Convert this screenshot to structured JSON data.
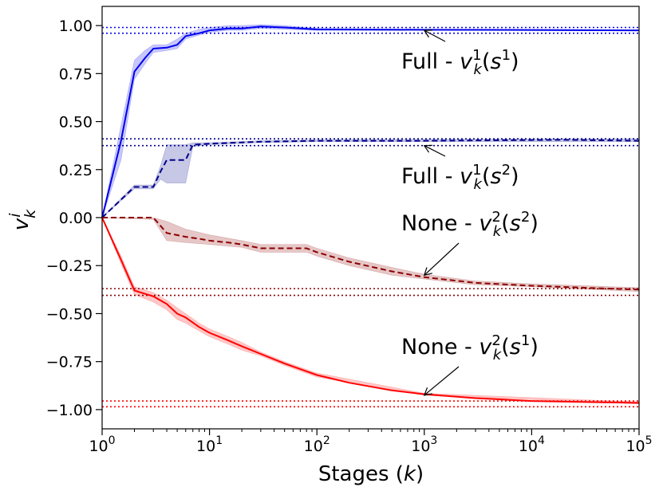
{
  "chart_data": {
    "type": "line",
    "xscale": "log",
    "xlim": [
      1,
      100000
    ],
    "ylim": [
      -1.1,
      1.1
    ],
    "xlabel": "Stages (k)",
    "ylabel": "v_k^i",
    "xticks": [
      {
        "value": 1,
        "base": "10",
        "exp": "0"
      },
      {
        "value": 10,
        "base": "10",
        "exp": "1"
      },
      {
        "value": 100,
        "base": "10",
        "exp": "2"
      },
      {
        "value": 1000,
        "base": "10",
        "exp": "3"
      },
      {
        "value": 10000,
        "base": "10",
        "exp": "4"
      },
      {
        "value": 100000,
        "base": "10",
        "exp": "5"
      }
    ],
    "yticks": [
      {
        "value": 1.0,
        "label": "1.00"
      },
      {
        "value": 0.75,
        "label": "0.75"
      },
      {
        "value": 0.5,
        "label": "0.50"
      },
      {
        "value": 0.25,
        "label": "0.25"
      },
      {
        "value": 0.0,
        "label": "0.00"
      },
      {
        "value": -0.25,
        "label": "−0.25"
      },
      {
        "value": -0.5,
        "label": "−0.50"
      },
      {
        "value": -0.75,
        "label": "−0.75"
      },
      {
        "value": -1.0,
        "label": "−1.00"
      }
    ],
    "reference_lines": [
      {
        "y": 0.99,
        "color": "#0000ee"
      },
      {
        "y": 0.96,
        "color": "#0000ee"
      },
      {
        "y": 0.41,
        "color": "#00008b"
      },
      {
        "y": 0.375,
        "color": "#00008b"
      },
      {
        "y": -0.37,
        "color": "#8b0000"
      },
      {
        "y": -0.405,
        "color": "#8b0000"
      },
      {
        "y": -0.955,
        "color": "#ff0000"
      },
      {
        "y": -0.985,
        "color": "#ff0000"
      }
    ],
    "series": [
      {
        "name": "Full - v_k^1(s^1)",
        "color": "#0000ee",
        "dash": "solid",
        "points": [
          [
            1,
            0.0
          ],
          [
            1.5,
            0.4
          ],
          [
            2,
            0.76
          ],
          [
            2.5,
            0.83
          ],
          [
            3,
            0.88
          ],
          [
            4,
            0.885
          ],
          [
            5,
            0.9
          ],
          [
            6,
            0.945
          ],
          [
            8,
            0.96
          ],
          [
            10,
            0.975
          ],
          [
            15,
            0.985
          ],
          [
            20,
            0.985
          ],
          [
            30,
            0.995
          ],
          [
            50,
            0.99
          ],
          [
            100,
            0.98
          ],
          [
            1000,
            0.978
          ],
          [
            10000,
            0.977
          ],
          [
            100000,
            0.975
          ]
        ],
        "band": [
          [
            1,
            0.0,
            0.0
          ],
          [
            1.5,
            0.3,
            0.48
          ],
          [
            2,
            0.72,
            0.82
          ],
          [
            2.5,
            0.8,
            0.87
          ],
          [
            3,
            0.86,
            0.9
          ],
          [
            4,
            0.87,
            0.9
          ],
          [
            5,
            0.88,
            0.93
          ],
          [
            6,
            0.93,
            0.96
          ],
          [
            8,
            0.95,
            0.98
          ],
          [
            10,
            0.965,
            0.99
          ],
          [
            15,
            0.975,
            1.0
          ],
          [
            20,
            0.975,
            1.0
          ],
          [
            30,
            0.985,
            1.005
          ],
          [
            50,
            0.98,
            1.0
          ],
          [
            100,
            0.975,
            0.985
          ],
          [
            1000,
            0.975,
            0.98
          ],
          [
            100000,
            0.972,
            0.978
          ]
        ]
      },
      {
        "name": "Full - v_k^1(s^2)",
        "color": "#00008b",
        "dash": "dashed",
        "points": [
          [
            1,
            0.0
          ],
          [
            2,
            0.16
          ],
          [
            3,
            0.16
          ],
          [
            3.5,
            0.24
          ],
          [
            4,
            0.3
          ],
          [
            6,
            0.3
          ],
          [
            7,
            0.38
          ],
          [
            10,
            0.385
          ],
          [
            30,
            0.395
          ],
          [
            100,
            0.4
          ],
          [
            1000,
            0.4
          ],
          [
            20000,
            0.405
          ],
          [
            100000,
            0.4
          ]
        ],
        "band": [
          [
            1,
            0.0,
            0.0
          ],
          [
            2,
            0.15,
            0.17
          ],
          [
            3,
            0.15,
            0.17
          ],
          [
            3.5,
            0.2,
            0.27
          ],
          [
            4,
            0.18,
            0.38
          ],
          [
            6,
            0.18,
            0.38
          ],
          [
            7,
            0.37,
            0.39
          ],
          [
            10,
            0.38,
            0.39
          ],
          [
            30,
            0.39,
            0.4
          ],
          [
            100,
            0.395,
            0.405
          ],
          [
            100000,
            0.395,
            0.41
          ]
        ]
      },
      {
        "name": "None - v_k^2(s^2)",
        "color": "#8b0000",
        "dash": "dashed",
        "points": [
          [
            1,
            0.0
          ],
          [
            3,
            0.0
          ],
          [
            4,
            -0.08
          ],
          [
            6,
            -0.1
          ],
          [
            8,
            -0.11
          ],
          [
            10,
            -0.12
          ],
          [
            15,
            -0.13
          ],
          [
            20,
            -0.14
          ],
          [
            30,
            -0.16
          ],
          [
            80,
            -0.16
          ],
          [
            100,
            -0.18
          ],
          [
            200,
            -0.23
          ],
          [
            500,
            -0.28
          ],
          [
            1000,
            -0.31
          ],
          [
            3000,
            -0.34
          ],
          [
            10000,
            -0.355
          ],
          [
            30000,
            -0.365
          ],
          [
            100000,
            -0.375
          ]
        ],
        "band": [
          [
            1,
            0.0,
            0.0
          ],
          [
            3,
            -0.01,
            0.0
          ],
          [
            4,
            -0.12,
            -0.02
          ],
          [
            6,
            -0.13,
            -0.06
          ],
          [
            10,
            -0.14,
            -0.09
          ],
          [
            20,
            -0.155,
            -0.12
          ],
          [
            30,
            -0.18,
            -0.14
          ],
          [
            80,
            -0.18,
            -0.14
          ],
          [
            100,
            -0.2,
            -0.16
          ],
          [
            200,
            -0.25,
            -0.21
          ],
          [
            500,
            -0.3,
            -0.26
          ],
          [
            1000,
            -0.32,
            -0.295
          ],
          [
            3000,
            -0.35,
            -0.33
          ],
          [
            10000,
            -0.36,
            -0.345
          ],
          [
            100000,
            -0.385,
            -0.365
          ]
        ]
      },
      {
        "name": "None - v_k^2(s^1)",
        "color": "#ff0000",
        "dash": "solid",
        "points": [
          [
            1,
            0.0
          ],
          [
            1.5,
            -0.22
          ],
          [
            2,
            -0.38
          ],
          [
            3,
            -0.41
          ],
          [
            4,
            -0.45
          ],
          [
            5,
            -0.5
          ],
          [
            6,
            -0.52
          ],
          [
            8,
            -0.57
          ],
          [
            10,
            -0.6
          ],
          [
            15,
            -0.64
          ],
          [
            20,
            -0.67
          ],
          [
            30,
            -0.71
          ],
          [
            50,
            -0.76
          ],
          [
            100,
            -0.82
          ],
          [
            200,
            -0.86
          ],
          [
            500,
            -0.9
          ],
          [
            1000,
            -0.92
          ],
          [
            3000,
            -0.94
          ],
          [
            10000,
            -0.955
          ],
          [
            100000,
            -0.965
          ]
        ],
        "band": [
          [
            1,
            0.0,
            0.0
          ],
          [
            1.5,
            -0.24,
            -0.2
          ],
          [
            2,
            -0.4,
            -0.36
          ],
          [
            3,
            -0.44,
            -0.39
          ],
          [
            4,
            -0.48,
            -0.43
          ],
          [
            5,
            -0.53,
            -0.47
          ],
          [
            6,
            -0.55,
            -0.5
          ],
          [
            8,
            -0.59,
            -0.55
          ],
          [
            10,
            -0.62,
            -0.58
          ],
          [
            15,
            -0.66,
            -0.62
          ],
          [
            20,
            -0.69,
            -0.65
          ],
          [
            30,
            -0.72,
            -0.7
          ],
          [
            50,
            -0.77,
            -0.75
          ],
          [
            100,
            -0.83,
            -0.81
          ],
          [
            1000,
            -0.925,
            -0.915
          ],
          [
            100000,
            -0.97,
            -0.96
          ]
        ]
      }
    ],
    "annotations": [
      {
        "prefix": "Full - ",
        "var": "v",
        "sup": "1",
        "sub": "k",
        "arg": "s",
        "argsup": "1",
        "arrow_to": [
          1000,
          0.975
        ]
      },
      {
        "prefix": "Full - ",
        "var": "v",
        "sup": "1",
        "sub": "k",
        "arg": "s",
        "argsup": "2",
        "arrow_to": [
          1000,
          0.375
        ]
      },
      {
        "prefix": "None - ",
        "var": "v",
        "sup": "2",
        "sub": "k",
        "arg": "s",
        "argsup": "2",
        "arrow_to": [
          1000,
          -0.3
        ]
      },
      {
        "prefix": "None - ",
        "var": "v",
        "sup": "2",
        "sub": "k",
        "arg": "s",
        "argsup": "1",
        "arrow_to": [
          1000,
          -0.925
        ]
      }
    ]
  }
}
